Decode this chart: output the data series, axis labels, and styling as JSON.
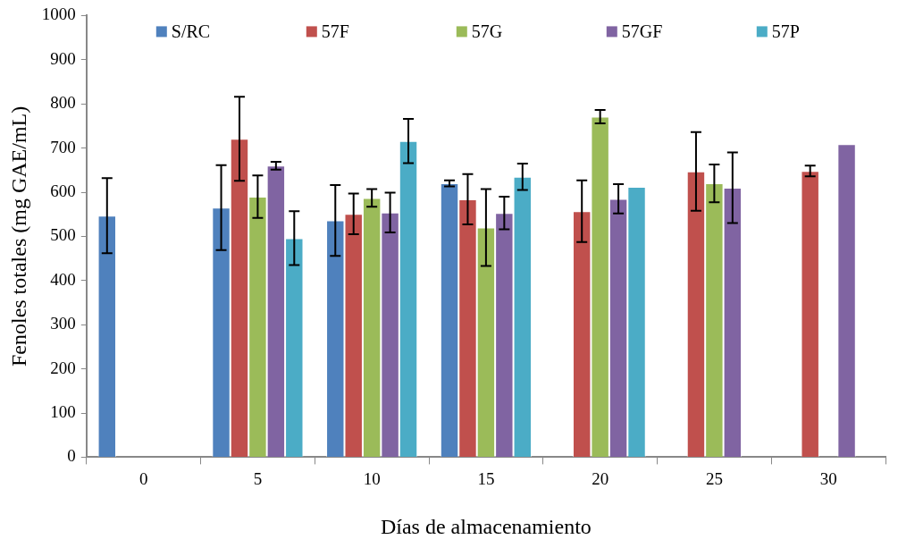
{
  "chart_data": {
    "type": "bar",
    "xlabel": "Días de almacenamiento",
    "ylabel": "Fenoles totales (mg GAE/mL)",
    "categories": [
      "0",
      "5",
      "10",
      "15",
      "20",
      "25",
      "30"
    ],
    "ylim": [
      0,
      1000
    ],
    "yticks": [
      0,
      100,
      200,
      300,
      400,
      500,
      600,
      700,
      800,
      900,
      1000
    ],
    "grid": false,
    "legend": "top",
    "series": [
      {
        "name": "S/RC",
        "color": "#4f81bd",
        "values": [
          547,
          565,
          536,
          620,
          null,
          null,
          null
        ],
        "errors": [
          85,
          96,
          80,
          7,
          null,
          null,
          null
        ]
      },
      {
        "name": "57F",
        "color": "#c0504d",
        "values": [
          null,
          721,
          551,
          584,
          557,
          647,
          648
        ],
        "errors": [
          null,
          95,
          46,
          57,
          70,
          89,
          12
        ]
      },
      {
        "name": "57G",
        "color": "#9bbb59",
        "values": [
          null,
          590,
          587,
          520,
          771,
          620,
          null
        ],
        "errors": [
          null,
          48,
          20,
          87,
          15,
          43,
          null
        ]
      },
      {
        "name": "57GF",
        "color": "#8064a2",
        "values": [
          null,
          660,
          554,
          553,
          585,
          610,
          709
        ],
        "errors": [
          null,
          9,
          45,
          37,
          33,
          80,
          null
        ]
      },
      {
        "name": "57P",
        "color": "#4bacc6",
        "values": [
          null,
          496,
          716,
          635,
          612,
          null,
          null
        ],
        "errors": [
          null,
          61,
          50,
          30,
          null,
          null,
          null
        ]
      }
    ]
  }
}
